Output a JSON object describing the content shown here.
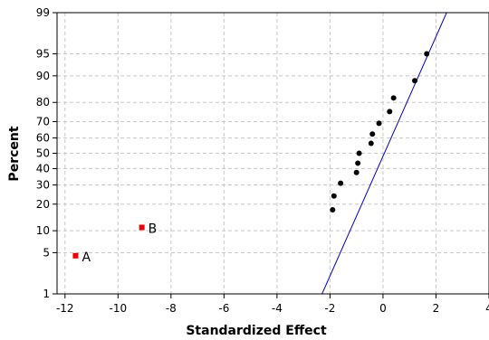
{
  "chart_data": {
    "type": "scatter",
    "title": "",
    "xlabel": "Standardized Effect",
    "ylabel": "Percent",
    "xlim": [
      -12.3,
      4
    ],
    "ylim": [
      1,
      99
    ],
    "yscale": "normal-probability",
    "grid": true,
    "xticks": [
      -12,
      -10,
      -8,
      -6,
      -4,
      -2,
      0,
      2,
      4
    ],
    "yticks": [
      1,
      5,
      10,
      20,
      30,
      40,
      50,
      60,
      70,
      80,
      90,
      95,
      99
    ],
    "reference_line": {
      "color": "#0000cc",
      "points": [
        [
          -2.3,
          1
        ],
        [
          2.4,
          99
        ]
      ]
    },
    "series": [
      {
        "color": "#000000",
        "marker": "circle",
        "points": [
          [
            -1.9,
            17.5
          ],
          [
            -1.85,
            24
          ],
          [
            -1.6,
            31
          ],
          [
            -1.0,
            37.5
          ],
          [
            -0.95,
            43.5
          ],
          [
            -0.9,
            50
          ],
          [
            -0.45,
            56.5
          ],
          [
            -0.4,
            62.5
          ],
          [
            -0.15,
            69
          ],
          [
            0.25,
            75.5
          ],
          [
            0.4,
            82
          ],
          [
            1.2,
            88.5
          ],
          [
            1.65,
            95
          ]
        ]
      },
      {
        "color": "#ee0000",
        "marker": "square",
        "points": [
          [
            -11.6,
            4.5
          ],
          [
            -9.1,
            11
          ]
        ],
        "labels": [
          "A",
          "B"
        ]
      }
    ]
  }
}
